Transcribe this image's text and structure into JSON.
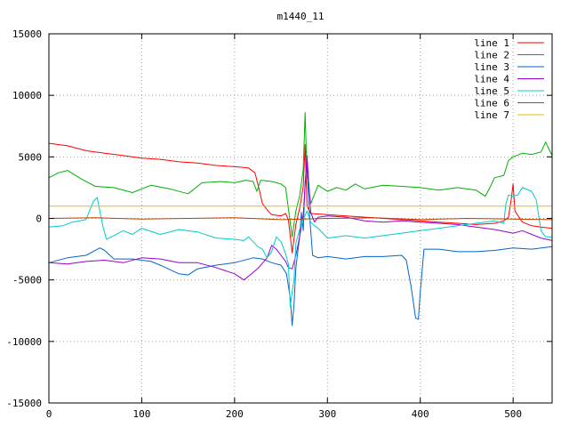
{
  "chart_data": {
    "type": "line",
    "title": "m1440_11",
    "xlabel": "",
    "ylabel": "",
    "xlim": [
      0,
      542
    ],
    "ylim": [
      -15000,
      15000
    ],
    "x_ticks": [
      0,
      100,
      200,
      300,
      400,
      500
    ],
    "y_ticks": [
      -15000,
      -10000,
      -5000,
      0,
      5000,
      10000,
      15000
    ],
    "grid": true,
    "legend_position": "top-right",
    "series": [
      {
        "name": "line 1",
        "color": "#ff0000",
        "points": [
          [
            0,
            6100
          ],
          [
            20,
            5900
          ],
          [
            40,
            5500
          ],
          [
            60,
            5300
          ],
          [
            80,
            5100
          ],
          [
            100,
            4900
          ],
          [
            120,
            4800
          ],
          [
            140,
            4600
          ],
          [
            160,
            4500
          ],
          [
            180,
            4300
          ],
          [
            200,
            4200
          ],
          [
            215,
            4100
          ],
          [
            222,
            3700
          ],
          [
            226,
            2500
          ],
          [
            230,
            1200
          ],
          [
            236,
            600
          ],
          [
            240,
            300
          ],
          [
            250,
            200
          ],
          [
            255,
            400
          ],
          [
            258,
            -100
          ],
          [
            262,
            -2800
          ],
          [
            266,
            -500
          ],
          [
            270,
            800
          ],
          [
            274,
            2600
          ],
          [
            276,
            6000
          ],
          [
            278,
            1000
          ],
          [
            282,
            400
          ],
          [
            300,
            300
          ],
          [
            320,
            200
          ],
          [
            340,
            100
          ],
          [
            360,
            0
          ],
          [
            380,
            -100
          ],
          [
            400,
            -200
          ],
          [
            420,
            -300
          ],
          [
            440,
            -400
          ],
          [
            460,
            -500
          ],
          [
            480,
            -400
          ],
          [
            490,
            -200
          ],
          [
            495,
            100
          ],
          [
            498,
            1600
          ],
          [
            500,
            2800
          ],
          [
            502,
            600
          ],
          [
            510,
            -300
          ],
          [
            520,
            -600
          ],
          [
            530,
            -700
          ],
          [
            542,
            -800
          ]
        ]
      },
      {
        "name": "line 2",
        "color": "#00b000",
        "points": [
          [
            0,
            3300
          ],
          [
            10,
            3700
          ],
          [
            20,
            3900
          ],
          [
            35,
            3200
          ],
          [
            50,
            2600
          ],
          [
            70,
            2500
          ],
          [
            90,
            2100
          ],
          [
            110,
            2700
          ],
          [
            130,
            2400
          ],
          [
            150,
            2000
          ],
          [
            165,
            2900
          ],
          [
            185,
            3000
          ],
          [
            200,
            2900
          ],
          [
            212,
            3100
          ],
          [
            220,
            3000
          ],
          [
            224,
            2200
          ],
          [
            228,
            3100
          ],
          [
            240,
            3000
          ],
          [
            250,
            2800
          ],
          [
            255,
            2500
          ],
          [
            258,
            800
          ],
          [
            262,
            -1500
          ],
          [
            266,
            600
          ],
          [
            270,
            1800
          ],
          [
            274,
            4000
          ],
          [
            276,
            8600
          ],
          [
            278,
            3500
          ],
          [
            282,
            1200
          ],
          [
            290,
            2700
          ],
          [
            300,
            2200
          ],
          [
            310,
            2500
          ],
          [
            320,
            2300
          ],
          [
            330,
            2800
          ],
          [
            340,
            2400
          ],
          [
            360,
            2700
          ],
          [
            380,
            2600
          ],
          [
            400,
            2500
          ],
          [
            420,
            2300
          ],
          [
            440,
            2500
          ],
          [
            460,
            2300
          ],
          [
            470,
            1800
          ],
          [
            475,
            2500
          ],
          [
            480,
            3300
          ],
          [
            490,
            3500
          ],
          [
            495,
            4700
          ],
          [
            500,
            5000
          ],
          [
            510,
            5300
          ],
          [
            520,
            5200
          ],
          [
            530,
            5400
          ],
          [
            535,
            6200
          ],
          [
            542,
            5100
          ]
        ]
      },
      {
        "name": "line 3",
        "color": "#0066cc",
        "points": [
          [
            0,
            -3600
          ],
          [
            20,
            -3200
          ],
          [
            40,
            -3000
          ],
          [
            55,
            -2400
          ],
          [
            60,
            -2600
          ],
          [
            70,
            -3300
          ],
          [
            90,
            -3300
          ],
          [
            110,
            -3500
          ],
          [
            120,
            -3800
          ],
          [
            140,
            -4500
          ],
          [
            150,
            -4600
          ],
          [
            160,
            -4100
          ],
          [
            180,
            -3800
          ],
          [
            200,
            -3600
          ],
          [
            220,
            -3200
          ],
          [
            230,
            -3300
          ],
          [
            240,
            -3600
          ],
          [
            250,
            -3800
          ],
          [
            256,
            -4500
          ],
          [
            260,
            -6500
          ],
          [
            262,
            -8700
          ],
          [
            264,
            -7000
          ],
          [
            266,
            -4000
          ],
          [
            270,
            -1500
          ],
          [
            272,
            500
          ],
          [
            274,
            -1000
          ],
          [
            276,
            3000
          ],
          [
            278,
            4500
          ],
          [
            280,
            1000
          ],
          [
            284,
            -3000
          ],
          [
            290,
            -3200
          ],
          [
            300,
            -3100
          ],
          [
            320,
            -3300
          ],
          [
            340,
            -3100
          ],
          [
            360,
            -3100
          ],
          [
            380,
            -3000
          ],
          [
            385,
            -3400
          ],
          [
            390,
            -5500
          ],
          [
            395,
            -8100
          ],
          [
            398,
            -8200
          ],
          [
            400,
            -6000
          ],
          [
            404,
            -2500
          ],
          [
            420,
            -2500
          ],
          [
            440,
            -2700
          ],
          [
            460,
            -2700
          ],
          [
            480,
            -2600
          ],
          [
            500,
            -2400
          ],
          [
            520,
            -2500
          ],
          [
            542,
            -2300
          ]
        ]
      },
      {
        "name": "line 4",
        "color": "#9900cc",
        "points": [
          [
            0,
            -3600
          ],
          [
            20,
            -3700
          ],
          [
            40,
            -3500
          ],
          [
            60,
            -3400
          ],
          [
            80,
            -3600
          ],
          [
            100,
            -3200
          ],
          [
            120,
            -3300
          ],
          [
            140,
            -3600
          ],
          [
            160,
            -3600
          ],
          [
            180,
            -4000
          ],
          [
            200,
            -4500
          ],
          [
            210,
            -5000
          ],
          [
            220,
            -4400
          ],
          [
            226,
            -4000
          ],
          [
            235,
            -3200
          ],
          [
            240,
            -2200
          ],
          [
            245,
            -2500
          ],
          [
            250,
            -3000
          ],
          [
            255,
            -3500
          ],
          [
            258,
            -4000
          ],
          [
            262,
            -4100
          ],
          [
            266,
            -3000
          ],
          [
            270,
            -1500
          ],
          [
            274,
            300
          ],
          [
            278,
            5100
          ],
          [
            282,
            500
          ],
          [
            286,
            -300
          ],
          [
            290,
            100
          ],
          [
            300,
            200
          ],
          [
            320,
            100
          ],
          [
            340,
            -200
          ],
          [
            360,
            -300
          ],
          [
            380,
            -200
          ],
          [
            400,
            -300
          ],
          [
            420,
            -400
          ],
          [
            440,
            -500
          ],
          [
            460,
            -700
          ],
          [
            480,
            -900
          ],
          [
            500,
            -1200
          ],
          [
            510,
            -1000
          ],
          [
            520,
            -1300
          ],
          [
            530,
            -1600
          ],
          [
            542,
            -1800
          ]
        ]
      },
      {
        "name": "line 5",
        "color": "#00cccc",
        "points": [
          [
            0,
            -700
          ],
          [
            15,
            -600
          ],
          [
            25,
            -300
          ],
          [
            40,
            -100
          ],
          [
            48,
            1400
          ],
          [
            52,
            1700
          ],
          [
            58,
            -600
          ],
          [
            62,
            -1700
          ],
          [
            70,
            -1400
          ],
          [
            80,
            -1000
          ],
          [
            90,
            -1300
          ],
          [
            100,
            -800
          ],
          [
            120,
            -1300
          ],
          [
            140,
            -900
          ],
          [
            160,
            -1100
          ],
          [
            180,
            -1600
          ],
          [
            200,
            -1700
          ],
          [
            210,
            -1800
          ],
          [
            215,
            -1500
          ],
          [
            225,
            -2300
          ],
          [
            230,
            -2500
          ],
          [
            235,
            -3200
          ],
          [
            240,
            -2700
          ],
          [
            245,
            -1500
          ],
          [
            250,
            -1900
          ],
          [
            255,
            -2900
          ],
          [
            258,
            -3700
          ],
          [
            260,
            -7200
          ],
          [
            262,
            -6000
          ],
          [
            264,
            -5000
          ],
          [
            266,
            -2000
          ],
          [
            270,
            -900
          ],
          [
            274,
            -100
          ],
          [
            278,
            600
          ],
          [
            282,
            -300
          ],
          [
            286,
            -600
          ],
          [
            290,
            -800
          ],
          [
            300,
            -1600
          ],
          [
            320,
            -1400
          ],
          [
            340,
            -1600
          ],
          [
            360,
            -1400
          ],
          [
            380,
            -1200
          ],
          [
            400,
            -1000
          ],
          [
            420,
            -800
          ],
          [
            440,
            -600
          ],
          [
            460,
            -400
          ],
          [
            480,
            -200
          ],
          [
            490,
            -400
          ],
          [
            492,
            1100
          ],
          [
            495,
            1900
          ],
          [
            500,
            1800
          ],
          [
            505,
            1900
          ],
          [
            510,
            2500
          ],
          [
            520,
            2200
          ],
          [
            525,
            1500
          ],
          [
            530,
            -1000
          ],
          [
            535,
            -1500
          ],
          [
            542,
            -1500
          ]
        ]
      },
      {
        "name": "line 6",
        "color": "#c04000",
        "points": [
          [
            0,
            0
          ],
          [
            50,
            50
          ],
          [
            100,
            -50
          ],
          [
            150,
            0
          ],
          [
            200,
            50
          ],
          [
            250,
            -100
          ],
          [
            300,
            0
          ],
          [
            350,
            50
          ],
          [
            400,
            -100
          ],
          [
            450,
            0
          ],
          [
            500,
            -50
          ],
          [
            542,
            -100
          ]
        ]
      },
      {
        "name": "line 7",
        "color": "#e0c000",
        "points": [
          [
            0,
            1000
          ],
          [
            100,
            1000
          ],
          [
            200,
            1000
          ],
          [
            300,
            1000
          ],
          [
            400,
            1000
          ],
          [
            500,
            1000
          ],
          [
            542,
            1000
          ]
        ]
      }
    ]
  }
}
